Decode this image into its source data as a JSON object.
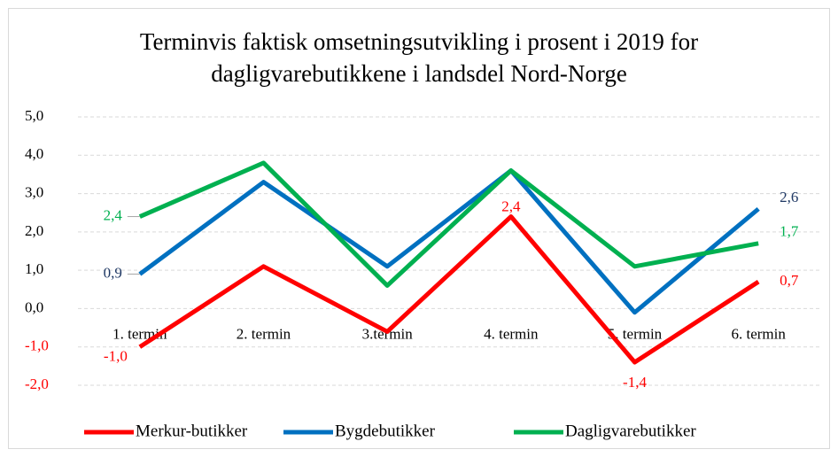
{
  "chart_data": {
    "type": "line",
    "title": [
      "Terminvis faktisk omsetningsutvikling i prosent i 2019 for",
      "dagligvarebutikkene i landsdel Nord-Norge"
    ],
    "categories": [
      "1. termin",
      "2. termin",
      "3.termin",
      "4. termin",
      "5. termin",
      "6. termin"
    ],
    "series": [
      {
        "name": "Merkur-butikker",
        "color": "#ff0000",
        "values": [
          -1.0,
          1.1,
          -0.6,
          2.4,
          -1.4,
          0.7
        ],
        "value_labels": [
          "-1,0",
          null,
          null,
          "2,4",
          "-1,4",
          "0,7"
        ]
      },
      {
        "name": "Bygdebutikker",
        "color": "#0070c0",
        "values": [
          0.9,
          3.3,
          1.1,
          3.6,
          -0.1,
          2.6
        ],
        "value_labels": [
          "0,9",
          null,
          null,
          null,
          null,
          "2,6"
        ],
        "label_color": "#1f3864"
      },
      {
        "name": "Dagligvarebutikker",
        "color": "#00b050",
        "values": [
          2.4,
          3.8,
          0.6,
          3.6,
          1.1,
          1.7
        ],
        "value_labels": [
          "2,4",
          null,
          null,
          null,
          null,
          "1,7"
        ]
      }
    ],
    "ylim": [
      -2,
      5
    ],
    "yticks": [
      {
        "value": -2,
        "label": "-2,0"
      },
      {
        "value": -1,
        "label": "-1,0"
      },
      {
        "value": 0,
        "label": "0,0"
      },
      {
        "value": 1,
        "label": "1,0"
      },
      {
        "value": 2,
        "label": "2,0"
      },
      {
        "value": 3,
        "label": "3,0"
      },
      {
        "value": 4,
        "label": "4,0"
      },
      {
        "value": 5,
        "label": "5,0"
      }
    ],
    "negative_tick_color": "#ff0000",
    "grid": true,
    "legend": "bottom"
  }
}
